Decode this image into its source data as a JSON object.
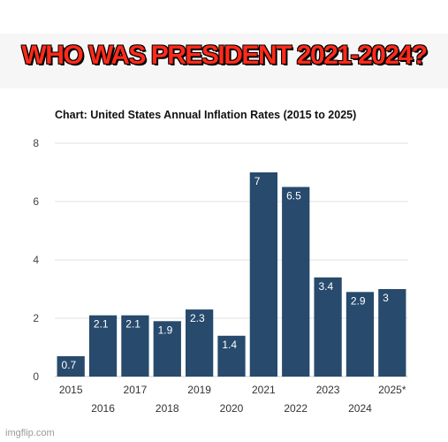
{
  "meme": {
    "caption": "WHO WAS PRESIDENT 2021-2024?",
    "caption_color": "#ff2a1a"
  },
  "watermark": "imgflip.com",
  "chart_data": {
    "type": "bar",
    "title": "Chart: United States Annual Inflation Rates (2015 to 2025)",
    "categories": [
      "2015",
      "2016",
      "2017",
      "2018",
      "2019",
      "2020",
      "2021",
      "2022",
      "2023",
      "2024",
      "2025*"
    ],
    "values": [
      0.7,
      2.1,
      2.1,
      1.9,
      2.3,
      1.4,
      7,
      6.5,
      3.4,
      2.9,
      3
    ],
    "data_labels": [
      "0.7",
      "2.1",
      "2.1",
      "1.9",
      "2.3",
      "1.4",
      "7",
      "6.5",
      "3.4",
      "2.9",
      "3"
    ],
    "ylim": [
      0,
      8
    ],
    "yticks": [
      0,
      2,
      4,
      6,
      8
    ],
    "xlabel": "",
    "ylabel": "",
    "grid": true,
    "bar_color": "#274a6d",
    "label_color": "#ffffff"
  }
}
